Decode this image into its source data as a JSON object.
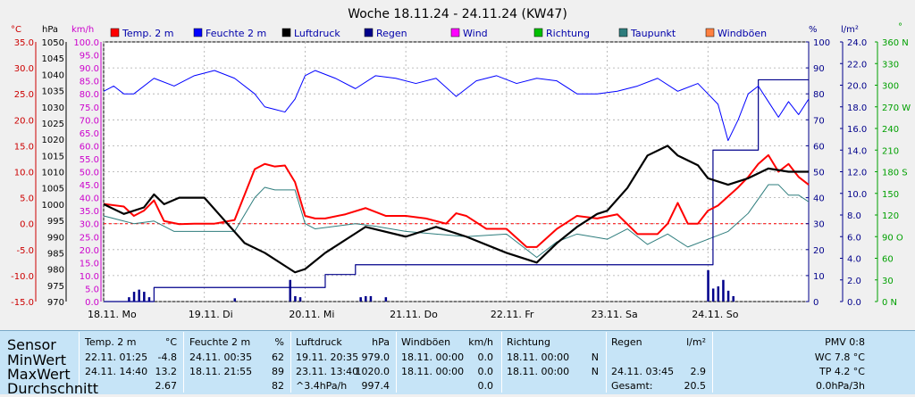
{
  "title": "Woche 18.11.24 - 24.11.24 (KW47)",
  "colors": {
    "temp": "#ff0000",
    "humidity": "#0000ff",
    "pressure": "#000000",
    "rain": "#00008b",
    "wind": "#ff00ff",
    "direction": "#00c000",
    "dewpoint": "#2e7d7d",
    "gusts": "#ff8040",
    "grid": "#888888",
    "zero_line": "#ff0000",
    "plot_bg": "#ffffff"
  },
  "axes": {
    "temp": {
      "unit": "°C",
      "ticks": [
        "35.0",
        "30.0",
        "25.0",
        "20.0",
        "15.0",
        "10.0",
        "5.0",
        "0.0",
        "-5.0",
        "-10.0",
        "-15.0"
      ],
      "range": [
        -15,
        35
      ]
    },
    "pressure": {
      "unit": "hPa",
      "ticks": [
        "1050",
        "1045",
        "1040",
        "1035",
        "1030",
        "1025",
        "1020",
        "1015",
        "1010",
        "1005",
        "1000",
        "995",
        "990",
        "985",
        "980",
        "975",
        "970"
      ],
      "range": [
        970,
        1050
      ]
    },
    "wind": {
      "unit": "km/h",
      "ticks": [
        "100.0",
        "95.0",
        "90.0",
        "85.0",
        "80.0",
        "75.0",
        "70.0",
        "65.0",
        "60.0",
        "55.0",
        "50.0",
        "45.0",
        "40.0",
        "35.0",
        "30.0",
        "25.0",
        "20.0",
        "15.0",
        "10.0",
        "5.0",
        "0.0"
      ],
      "range": [
        0,
        100
      ]
    },
    "humidity": {
      "unit": "%",
      "ticks": [
        "100",
        "90",
        "80",
        "70",
        "60",
        "50",
        "40",
        "30",
        "20",
        "10",
        "0"
      ],
      "range": [
        0,
        100
      ]
    },
    "rain": {
      "unit": "l/m²",
      "ticks": [
        "24.0",
        "22.0",
        "20.0",
        "18.0",
        "16.0",
        "14.0",
        "12.0",
        "10.0",
        "8.0",
        "6.0",
        "4.0",
        "2.0",
        "0.0"
      ],
      "range": [
        0,
        24
      ]
    },
    "direction": {
      "unit": "°",
      "ticks": [
        "360 N",
        "330",
        "300",
        "270 W",
        "240",
        "210",
        "180 S",
        "150",
        "120",
        "90 O",
        "60",
        "30",
        "0 N"
      ],
      "range": [
        0,
        360
      ]
    }
  },
  "legend": [
    {
      "label": "Temp. 2 m",
      "color": "#ff0000"
    },
    {
      "label": "Feuchte 2 m",
      "color": "#0000ff"
    },
    {
      "label": "Luftdruck",
      "color": "#000000"
    },
    {
      "label": "Regen",
      "color": "#00008b"
    },
    {
      "label": "Wind",
      "color": "#ff00ff"
    },
    {
      "label": "Richtung",
      "color": "#00c000"
    },
    {
      "label": "Taupunkt",
      "color": "#2e7d7d"
    },
    {
      "label": "Windböen",
      "color": "#ff8040"
    }
  ],
  "chart_data": {
    "type": "line",
    "title": "Woche 18.11.24 - 24.11.24 (KW47)",
    "x_labels": [
      "18.11. Mo",
      "19.11. Di",
      "20.11. Mi",
      "21.11. Do",
      "22.11. Fr",
      "23.11. Sa",
      "24.11. So"
    ],
    "x_range_days": [
      0,
      7
    ],
    "grid": true,
    "series": [
      {
        "name": "Temp. 2 m",
        "axis": "temp",
        "x": [
          0,
          0.2,
          0.3,
          0.4,
          0.5,
          0.6,
          0.75,
          0.9,
          1.1,
          1.3,
          1.5,
          1.6,
          1.7,
          1.8,
          1.9,
          2.0,
          2.1,
          2.2,
          2.4,
          2.6,
          2.8,
          3.0,
          3.2,
          3.4,
          3.5,
          3.6,
          3.8,
          4.0,
          4.2,
          4.3,
          4.5,
          4.7,
          4.9,
          5.1,
          5.3,
          5.5,
          5.6,
          5.7,
          5.8,
          5.9,
          6.0,
          6.1,
          6.3,
          6.4,
          6.5,
          6.6,
          6.7,
          6.8,
          6.9,
          7.0
        ],
        "values": [
          3.8,
          3.3,
          1.5,
          2.5,
          4.5,
          0.5,
          -0.1,
          0,
          0,
          0.7,
          10.5,
          11.5,
          11,
          11.2,
          8,
          1.5,
          1,
          1,
          1.8,
          3,
          1.5,
          1.5,
          1,
          0,
          2,
          1.5,
          -1,
          -1,
          -4.5,
          -4.5,
          -1,
          1.5,
          1,
          1.8,
          -2,
          -2,
          0,
          4,
          0,
          0,
          2.5,
          3.5,
          7,
          9,
          11.5,
          13.2,
          10,
          11.5,
          9,
          7.5
        ]
      },
      {
        "name": "Taupunkt",
        "axis": "temp",
        "x": [
          0,
          0.3,
          0.5,
          0.7,
          0.9,
          1.1,
          1.3,
          1.5,
          1.6,
          1.7,
          1.9,
          2.0,
          2.1,
          2.3,
          2.5,
          2.7,
          3.0,
          3.3,
          3.6,
          4.0,
          4.3,
          4.5,
          4.7,
          5.0,
          5.2,
          5.4,
          5.6,
          5.8,
          6.0,
          6.2,
          6.4,
          6.6,
          6.7,
          6.8,
          6.9,
          7.0
        ],
        "values": [
          1.5,
          0,
          0.5,
          -1.5,
          -1.5,
          -1.5,
          -1.5,
          5,
          7,
          6.5,
          6.5,
          0,
          -1,
          -0.5,
          0,
          -0.5,
          -1.5,
          -2,
          -2.5,
          -2,
          -6.5,
          -3.5,
          -2,
          -3,
          -1,
          -4,
          -2,
          -4.5,
          -3,
          -1.5,
          2,
          7.5,
          7.5,
          5.5,
          5.5,
          4.2
        ]
      },
      {
        "name": "Feuchte 2 m",
        "axis": "humidity",
        "x": [
          0,
          0.1,
          0.2,
          0.3,
          0.5,
          0.7,
          0.9,
          1.1,
          1.3,
          1.5,
          1.6,
          1.7,
          1.8,
          1.9,
          2.0,
          2.1,
          2.3,
          2.5,
          2.7,
          2.9,
          3.1,
          3.3,
          3.5,
          3.7,
          3.9,
          4.1,
          4.3,
          4.5,
          4.7,
          4.9,
          5.1,
          5.3,
          5.5,
          5.7,
          5.9,
          6.0,
          6.1,
          6.2,
          6.3,
          6.4,
          6.5,
          6.6,
          6.7,
          6.8,
          6.9,
          7.0
        ],
        "values": [
          81,
          83,
          80,
          80,
          86,
          83,
          87,
          89,
          86,
          80,
          75,
          74,
          73,
          78,
          87,
          89,
          86,
          82,
          87,
          86,
          84,
          86,
          79,
          85,
          87,
          84,
          86,
          85,
          80,
          80,
          81,
          83,
          86,
          81,
          84,
          80,
          76,
          62,
          70,
          80,
          83,
          77,
          71,
          77,
          72,
          78
        ]
      },
      {
        "name": "Luftdruck",
        "axis": "pressure",
        "x": [
          0,
          0.2,
          0.4,
          0.5,
          0.6,
          0.75,
          1.0,
          1.2,
          1.4,
          1.6,
          1.8,
          1.9,
          2.0,
          2.2,
          2.5,
          2.6,
          3.0,
          3.3,
          3.6,
          4.0,
          4.3,
          4.5,
          4.7,
          4.9,
          5.0,
          5.2,
          5.4,
          5.6,
          5.7,
          5.9,
          6.0,
          6.2,
          6.4,
          6.6,
          6.8,
          7.0
        ],
        "values": [
          1000,
          997,
          999,
          1003,
          1000,
          1002,
          1002,
          995,
          988,
          985,
          981,
          979,
          980,
          985,
          991,
          993,
          990,
          993,
          990,
          985,
          982,
          988,
          993,
          997,
          998,
          1005,
          1015,
          1018,
          1015,
          1012,
          1008,
          1006,
          1008,
          1011,
          1010,
          1010
        ]
      },
      {
        "name": "Regen",
        "axis": "rain",
        "x": [
          0,
          0.2,
          0.5,
          0.9,
          1.2,
          1.5,
          1.8,
          2.0,
          2.2,
          2.5,
          2.8,
          3.0,
          3.5,
          4.0,
          4.5,
          5.0,
          5.5,
          6.0,
          6.05,
          6.5,
          7.0
        ],
        "values": [
          0,
          0,
          1.3,
          1.3,
          1.3,
          1.3,
          1.3,
          1.3,
          2.5,
          3.4,
          3.4,
          3.4,
          3.4,
          3.4,
          3.4,
          3.4,
          3.4,
          3.4,
          14,
          20.5,
          20.5
        ]
      },
      {
        "name": "Regen Balken",
        "axis": "rain",
        "type": "bar",
        "x": [
          0.25,
          0.3,
          0.35,
          0.4,
          0.45,
          1.3,
          1.85,
          1.9,
          1.95,
          2.55,
          2.6,
          2.65,
          2.8,
          6.0,
          6.05,
          6.1,
          6.15,
          6.2,
          6.25
        ],
        "values": [
          0.4,
          0.9,
          1.1,
          0.9,
          0.4,
          0.3,
          2.0,
          0.5,
          0.4,
          0.4,
          0.5,
          0.5,
          0.4,
          2.9,
          1.2,
          1.4,
          2.0,
          1.0,
          0.5
        ]
      }
    ]
  },
  "x_axis_labels": [
    "18.11. Mo",
    "19.11. Di",
    "20.11. Mi",
    "21.11. Do",
    "22.11. Fr",
    "23.11. Sa",
    "24.11. So"
  ],
  "stats": {
    "row_labels": [
      "Sensor",
      "MinWert",
      "MaxWert",
      "Durchschnitt"
    ],
    "temp": {
      "header": "Temp. 2 m",
      "unit": "°C",
      "min_date": "22.11. 01:25",
      "min_val": "-4.8",
      "max_date": "24.11. 14:40",
      "max_val": "13.2",
      "avg": "2.67"
    },
    "humidity": {
      "header": "Feuchte 2 m",
      "unit": "%",
      "min_date": "24.11. 00:35",
      "min_val": "62",
      "max_date": "18.11. 21:55",
      "max_val": "89",
      "avg": "82"
    },
    "pressure": {
      "header": "Luftdruck",
      "unit": "hPa",
      "min_date": "19.11. 20:35",
      "min_val": "979.0",
      "max_date": "23.11. 13:40",
      "max_val": "1020.0",
      "avg_note": "^3.4hPa/h",
      "avg": "997.4"
    },
    "gusts": {
      "header": "Windböen",
      "unit": "km/h",
      "min_date": "18.11. 00:00",
      "min_val": "0.0",
      "max_date": "18.11. 00:00",
      "max_val": "0.0",
      "avg": "0.0"
    },
    "direction": {
      "header": "Richtung",
      "min_date": "18.11. 00:00",
      "min_val": "N",
      "max_date": "18.11. 00:00",
      "max_val": "N"
    },
    "rain": {
      "header": "Regen",
      "unit": "l/m²",
      "max_date": "24.11. 03:45",
      "max_val": "2.9",
      "total_label": "Gesamt:",
      "total": "20.5"
    },
    "pmv": {
      "header": "PMV 0:8",
      "wc": "WC 7.8 °C",
      "tp": "TP 4.2 °C",
      "trend": "0.0hPa/3h"
    }
  }
}
